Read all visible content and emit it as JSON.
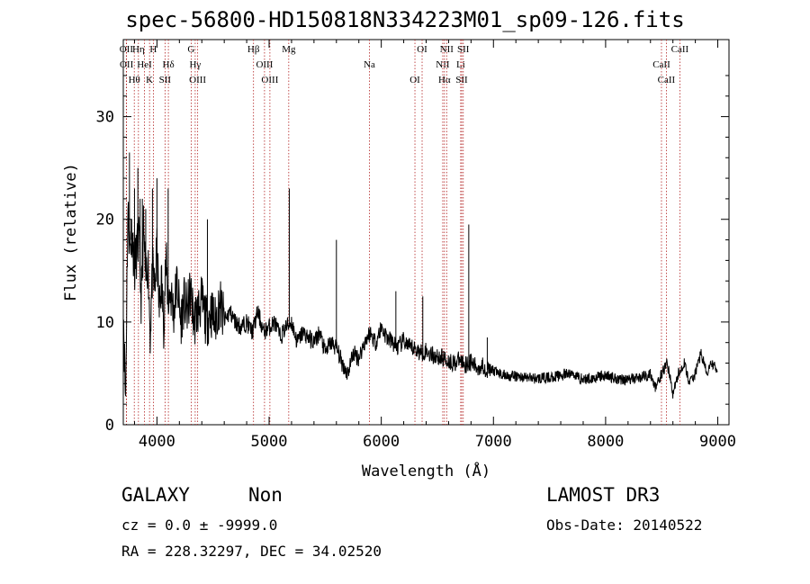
{
  "chart_data": {
    "type": "line",
    "title": "spec-56800-HD150818N334223M01_sp09-126.fits",
    "xlabel": "Wavelength (Å)",
    "ylabel": "Flux (relative)",
    "xlim": [
      3700,
      9100
    ],
    "ylim": [
      0,
      37.5
    ],
    "x_ticks": [
      4000,
      5000,
      6000,
      7000,
      8000,
      9000
    ],
    "y_ticks": [
      0,
      10,
      20,
      30
    ],
    "grid": false,
    "series": [
      {
        "name": "flux",
        "x": [
          3700,
          3720,
          3740,
          3760,
          3780,
          3800,
          3820,
          3840,
          3860,
          3880,
          3900,
          3920,
          3940,
          3960,
          3980,
          4000,
          4020,
          4040,
          4060,
          4080,
          4100,
          4120,
          4150,
          4180,
          4210,
          4240,
          4270,
          4300,
          4330,
          4360,
          4400,
          4440,
          4480,
          4520,
          4560,
          4600,
          4650,
          4700,
          4750,
          4800,
          4850,
          4900,
          4950,
          5000,
          5050,
          5100,
          5150,
          5200,
          5250,
          5300,
          5350,
          5400,
          5450,
          5500,
          5550,
          5600,
          5650,
          5700,
          5750,
          5800,
          5850,
          5900,
          5950,
          6000,
          6050,
          6100,
          6150,
          6200,
          6250,
          6300,
          6350,
          6400,
          6450,
          6500,
          6550,
          6600,
          6650,
          6700,
          6750,
          6800,
          6850,
          6900,
          6950,
          7000,
          7050,
          7100,
          7200,
          7300,
          7400,
          7500,
          7600,
          7700,
          7800,
          7900,
          8000,
          8100,
          8200,
          8300,
          8400,
          8450,
          8500,
          8550,
          8600,
          8650,
          8700,
          8750,
          8800,
          8850,
          8900,
          8950,
          9000
        ],
        "values": [
          12,
          2,
          21,
          17,
          19,
          15,
          17,
          18,
          12,
          19,
          14,
          16,
          9,
          15,
          13,
          17,
          11,
          14,
          10,
          16,
          12,
          13,
          11,
          14,
          10,
          12,
          11,
          13,
          10,
          11,
          12,
          10,
          11,
          10,
          12,
          10,
          11,
          10,
          9.5,
          10,
          9,
          11,
          9,
          9.5,
          10,
          8.5,
          9.5,
          10,
          8,
          9,
          8.5,
          8,
          9,
          7,
          8,
          7.5,
          6,
          5,
          7,
          6.5,
          8,
          9,
          8,
          9.5,
          8.5,
          8,
          7.5,
          8.2,
          7.5,
          7.4,
          7,
          7.2,
          6.8,
          6.6,
          6.5,
          6.2,
          6,
          6.3,
          5.9,
          6.1,
          5.5,
          5.8,
          5.3,
          5.2,
          5,
          4.8,
          4.7,
          4.6,
          4.5,
          4.6,
          4.8,
          5,
          4.4,
          4.6,
          4.8,
          4.5,
          4.4,
          4.6,
          4.9,
          3.5,
          5,
          6,
          3,
          5,
          6,
          4,
          5,
          7,
          5,
          6,
          5
        ]
      },
      {
        "name": "spikes",
        "x": [
          3755,
          3770,
          3800,
          3830,
          3850,
          3870,
          3900,
          3960,
          4000,
          4100,
          4450,
          5180,
          5600,
          6130,
          6370,
          6780,
          6945
        ],
        "values": [
          26.5,
          20,
          23,
          25,
          22,
          22,
          21,
          23,
          24,
          23,
          20,
          23,
          18,
          13,
          12.5,
          19.5,
          8.5
        ]
      }
    ],
    "lines": [
      {
        "label": "OII",
        "x": 3727
      },
      {
        "label": "OII",
        "x": 3729
      },
      {
        "label": "Hθ",
        "x": 3798
      },
      {
        "label": "Hη",
        "x": 3835
      },
      {
        "label": "HeI",
        "x": 3889
      },
      {
        "label": "K",
        "x": 3934
      },
      {
        "label": "H",
        "x": 3968
      },
      {
        "label": "Hδ",
        "x": 4102
      },
      {
        "label": "SII",
        "x": 4072
      },
      {
        "label": "G",
        "x": 4305
      },
      {
        "label": "Hγ",
        "x": 4341
      },
      {
        "label": "OIII",
        "x": 4363
      },
      {
        "label": "Hβ",
        "x": 4861
      },
      {
        "label": "OIII",
        "x": 4959
      },
      {
        "label": "OIII",
        "x": 5007
      },
      {
        "label": "Mg",
        "x": 5175
      },
      {
        "label": "Na",
        "x": 5894
      },
      {
        "label": "OI",
        "x": 6300
      },
      {
        "label": "OI",
        "x": 6364
      },
      {
        "label": "NII",
        "x": 6548
      },
      {
        "label": "Hα",
        "x": 6563
      },
      {
        "label": "NII",
        "x": 6583
      },
      {
        "label": "Li",
        "x": 6708
      },
      {
        "label": "SII",
        "x": 6717
      },
      {
        "label": "SII",
        "x": 6731
      },
      {
        "label": "CaII",
        "x": 8498
      },
      {
        "label": "CaII",
        "x": 8542
      },
      {
        "label": "CaII",
        "x": 8662
      }
    ]
  },
  "info": {
    "class_label": "GALAXY",
    "subclass": "Non",
    "cz_text": "cz = 0.0 ± -9999.0",
    "radec_text": "RA = 228.32297, DEC =  34.02520",
    "survey": "LAMOST DR3",
    "obs_date_text": "Obs-Date: 20140522"
  }
}
